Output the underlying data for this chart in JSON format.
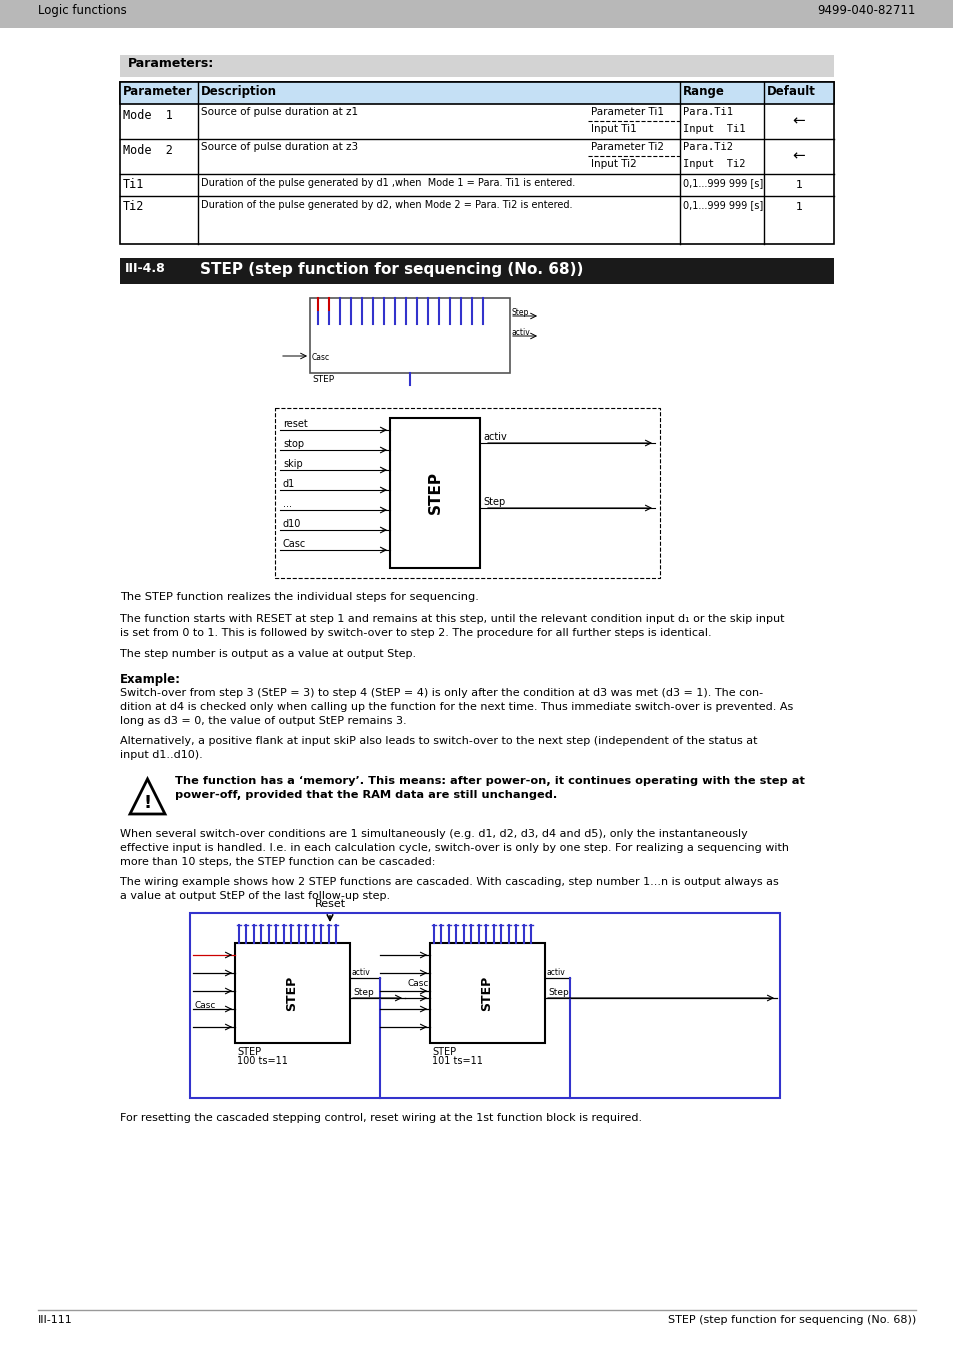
{
  "page_title_left": "Logic functions",
  "page_title_right": "9499-040-82711",
  "section_heading_text": "Parameters:",
  "footer_left": "III-111",
  "footer_right": "STEP (step function for sequencing (No. 68))"
}
